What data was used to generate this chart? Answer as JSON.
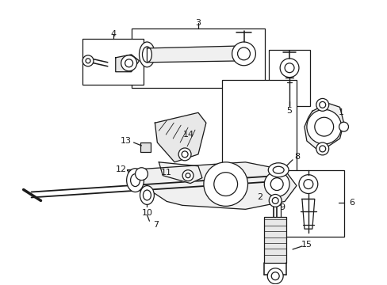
{
  "bg_color": "#ffffff",
  "line_color": "#1a1a1a",
  "fig_width": 4.89,
  "fig_height": 3.6,
  "dpi": 100,
  "gray": "#888888",
  "darkgray": "#555555"
}
